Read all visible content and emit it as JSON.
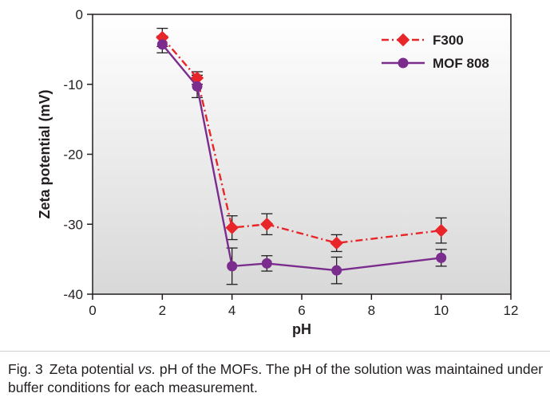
{
  "chart_data": {
    "type": "line",
    "xlabel": "pH",
    "ylabel": "Zeta potential (mV)",
    "xlim": [
      0,
      12
    ],
    "ylim": [
      -40,
      0
    ],
    "xticks": [
      0,
      2,
      4,
      6,
      8,
      10,
      12
    ],
    "yticks": [
      0,
      -10,
      -20,
      -30,
      -40
    ],
    "grid": false,
    "background": "gradient-gray",
    "legend_position": "top-right",
    "series": [
      {
        "name": "F300",
        "color": "#e8262a",
        "line_style": "dash-dot",
        "marker": "diamond",
        "x": [
          2,
          3,
          4,
          5,
          7,
          10
        ],
        "y": [
          -3.3,
          -9.1,
          -30.5,
          -30.0,
          -32.7,
          -30.9
        ],
        "err": [
          1.3,
          0.9,
          1.7,
          1.5,
          1.2,
          1.8
        ]
      },
      {
        "name": "MOF 808",
        "color": "#7b2d8e",
        "line_style": "solid",
        "marker": "circle",
        "x": [
          2,
          3,
          4,
          5,
          7,
          10
        ],
        "y": [
          -4.3,
          -10.3,
          -36.0,
          -35.6,
          -36.6,
          -34.8
        ],
        "err": [
          1.2,
          1.6,
          2.6,
          1.1,
          1.9,
          1.2
        ]
      }
    ]
  },
  "caption": {
    "label": "Fig. 3",
    "text_before": "Zeta potential ",
    "text_italic": "vs.",
    "text_after": " pH of the MOFs. The pH of the solution was maintained under buffer conditions for each measurement."
  }
}
